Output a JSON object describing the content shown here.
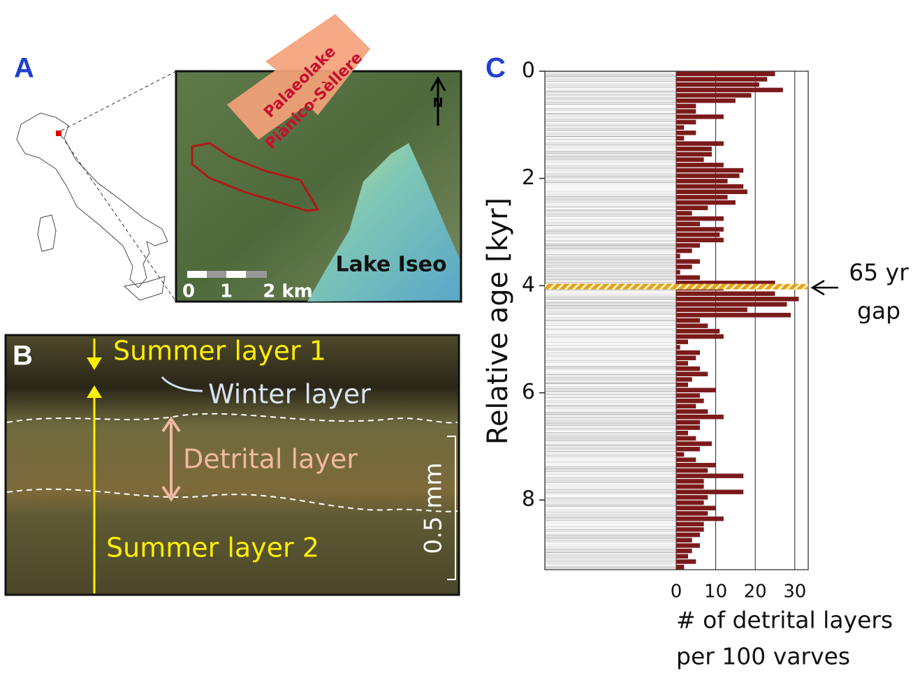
{
  "panel_a": {
    "letter": "A",
    "arrow_label": [
      "Palaeolake",
      "Piànico-Sèllere"
    ],
    "lake": "Lake Iseo",
    "north": "N",
    "scale_labels": [
      "0",
      "1",
      "2 km"
    ]
  },
  "panel_b": {
    "letter": "B",
    "labels": [
      "Summer layer 1",
      "Winter layer",
      "Detrital layer",
      "Summer layer 2"
    ],
    "scale": "0.5 mm"
  },
  "chart_data": {
    "type": "histogram",
    "orientation": "horizontal",
    "panel_letter": "C",
    "ylabel": "Relative age [kyr]",
    "xlabel": [
      "# of detrital layers",
      "per 100 varves"
    ],
    "color": "#7b1a1a",
    "bins": [
      0,
      0.1,
      0.2,
      0.3,
      0.4,
      0.5,
      0.6,
      0.7,
      0.8,
      0.9,
      1.0,
      1.1,
      1.2,
      1.3,
      1.4,
      1.5,
      1.6,
      1.7,
      1.8,
      1.9,
      2.0,
      2.1,
      2.2,
      2.3,
      2.4,
      2.5,
      2.6,
      2.7,
      2.8,
      2.9,
      3.0,
      3.1,
      3.2,
      3.3,
      3.4,
      3.5,
      3.6,
      3.7,
      3.8,
      3.9,
      4.0,
      4.1,
      4.2,
      4.3,
      4.4,
      4.5,
      4.6,
      4.7,
      4.8,
      4.9,
      5.0,
      5.1,
      5.2,
      5.3,
      5.4,
      5.5,
      5.6,
      5.7,
      5.8,
      5.9,
      6.0,
      6.1,
      6.2,
      6.3,
      6.4,
      6.5,
      6.6,
      6.7,
      6.8,
      6.9,
      7.0,
      7.1,
      7.2,
      7.3,
      7.4,
      7.5,
      7.6,
      7.7,
      7.8,
      7.9,
      8.0,
      8.1,
      8.2,
      8.3,
      8.4,
      8.5,
      8.6,
      8.7,
      8.8,
      8.9,
      9.0,
      9.1,
      9.2,
      9.3
    ],
    "values": [
      25,
      23,
      21,
      27,
      19,
      15,
      5,
      5,
      12,
      5,
      2,
      5,
      2,
      12,
      9,
      9,
      7,
      12,
      17,
      16,
      13,
      17,
      18,
      13,
      15,
      8,
      4,
      12,
      6,
      12,
      11,
      12,
      6,
      4,
      1,
      6,
      4,
      1,
      6,
      25,
      12,
      25,
      31,
      28,
      18,
      29,
      6,
      8,
      11,
      12,
      3,
      1,
      6,
      5,
      3,
      6,
      8,
      4,
      3,
      10,
      6,
      7,
      5,
      8,
      12,
      6,
      6,
      3,
      5,
      9,
      6,
      2,
      5,
      10,
      8,
      17,
      7,
      7,
      17,
      8,
      7,
      10,
      8,
      12,
      7,
      7,
      6,
      4,
      6,
      4,
      3,
      5,
      2
    ],
    "ylim": [
      0,
      9.3
    ],
    "yticks": [
      0,
      2,
      4,
      6,
      8
    ],
    "y_inverted": true,
    "xlim": [
      0,
      33.4
    ],
    "xticks": [
      0,
      10,
      20,
      30
    ],
    "grid": true,
    "gap_age": 4.02,
    "gap_label": [
      "65 yr",
      "gap"
    ]
  }
}
